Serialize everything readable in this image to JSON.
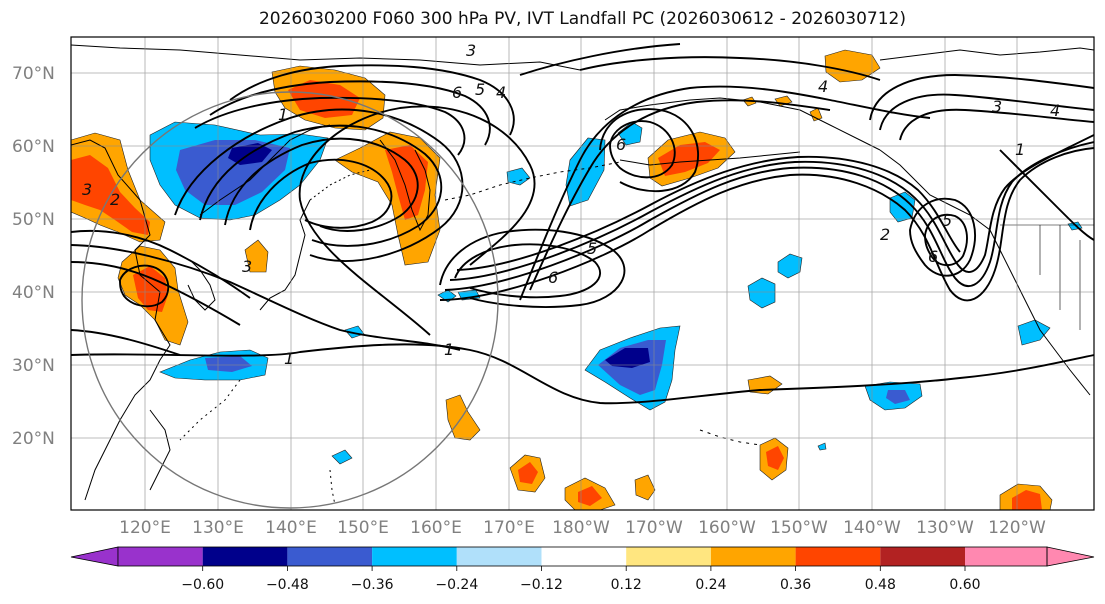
{
  "title": "2026030200 F060 300 hPa PV, IVT Landfall PC (2026030612 - 2026030712)",
  "latitude_labels": [
    "70°N",
    "60°N",
    "50°N",
    "40°N",
    "30°N",
    "20°N"
  ],
  "longitude_labels": [
    "120°E",
    "130°E",
    "140°E",
    "150°E",
    "160°E",
    "170°E",
    "180°W",
    "170°W",
    "160°W",
    "150°W",
    "140°W",
    "130°W",
    "120°W"
  ],
  "contour_labels": [
    "1",
    "1",
    "1",
    "1",
    "3",
    "3",
    "4",
    "4",
    "4",
    "5",
    "5",
    "5",
    "6",
    "6",
    "6",
    "6",
    "2",
    "2",
    "3",
    "3"
  ],
  "colorbar": {
    "ticks": [
      "−0.60",
      "−0.48",
      "−0.36",
      "−0.24",
      "−0.12",
      "0.12",
      "0.24",
      "0.36",
      "0.48",
      "0.60"
    ],
    "colors": [
      "#9932cc",
      "#00008b",
      "#3a5bd0",
      "#00bfff",
      "#b0e0fa",
      "#ffffff",
      "#ffe680",
      "#ffa500",
      "#ff4500",
      "#b22222",
      "#ff88b0"
    ]
  },
  "field_colors": {
    "neg_dark": "#00008b",
    "neg_mid": "#3a5bd0",
    "neg_light": "#00bfff",
    "pos_light": "#ffa500",
    "pos_mid": "#ff4500",
    "pos_yellow": "#ffe680"
  },
  "chart_data": {
    "type": "map",
    "title": "2026030200 F060 300 hPa PV, IVT Landfall PC (2026030612 - 2026030712)",
    "fields": [
      "300 hPa PV (contours, PVU)",
      "IVT Landfall PC (shaded)"
    ],
    "lat_range": [
      10,
      75
    ],
    "lon_range": [
      113,
      245
    ],
    "shading_levels": [
      -0.6,
      -0.48,
      -0.36,
      -0.24,
      -0.12,
      0.12,
      0.24,
      0.36,
      0.48,
      0.6
    ],
    "contour_levels": [
      1,
      2,
      3,
      4,
      5,
      6
    ],
    "extend": "both"
  }
}
